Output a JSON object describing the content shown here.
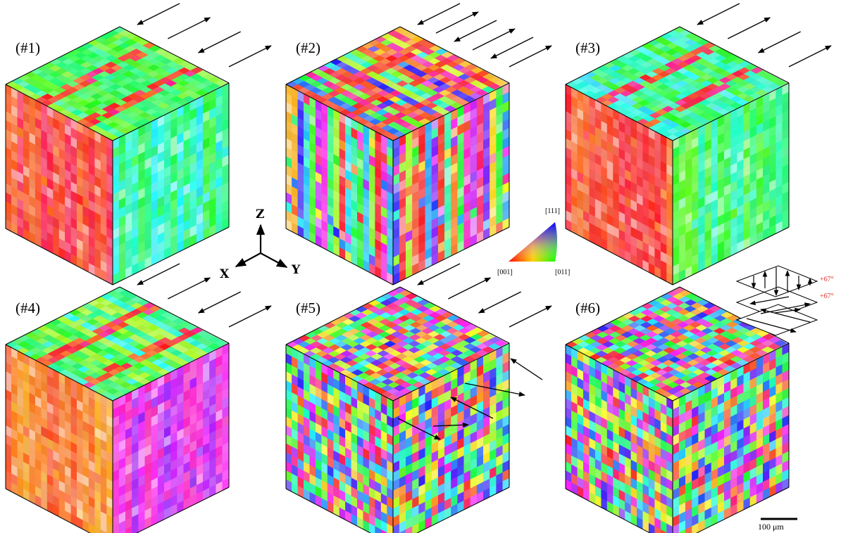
{
  "panels": [
    {
      "label": "(#1)"
    },
    {
      "label": "(#2)"
    },
    {
      "label": "(#3)"
    },
    {
      "label": "(#4)"
    },
    {
      "label": "(#5)"
    },
    {
      "label": "(#6)"
    }
  ],
  "axes": {
    "z": "Z",
    "x": "X",
    "y": "Y"
  },
  "ipf_legend": {
    "top": "[111]",
    "left": "[001]",
    "right": "[011]"
  },
  "scan_inset": {
    "angles": [
      "+67°",
      "+67°"
    ]
  },
  "scale_bar": "100 μm"
}
